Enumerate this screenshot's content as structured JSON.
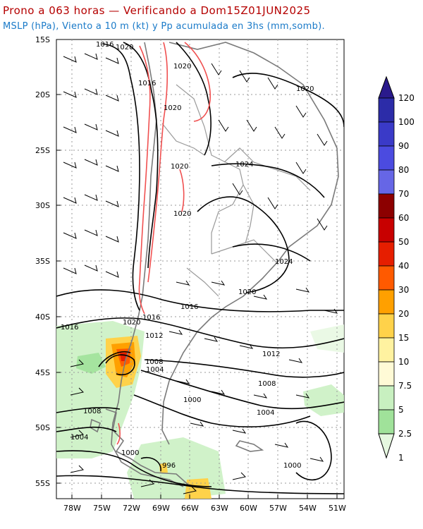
{
  "header": {
    "title": "Prono a 063 horas — Verificando a Dom15Z01JUN2025",
    "subtitle": "MSLP (hPa), Viento a 10 m (kt) y Pp acumulada en 3hs (mm,somb)."
  },
  "map": {
    "lat_labels": [
      "15S",
      "20S",
      "25S",
      "30S",
      "35S",
      "40S",
      "45S",
      "50S",
      "55S"
    ],
    "lon_labels": [
      "78W",
      "75W",
      "72W",
      "69W",
      "66W",
      "63W",
      "60W",
      "57W",
      "54W",
      "51W"
    ],
    "isobar_labels": [
      "1016",
      "1020",
      "1016",
      "1020",
      "1020",
      "1020",
      "1024",
      "1020",
      "1020",
      "1024",
      "1020",
      "1016",
      "1016",
      "1020",
      "1016",
      "1012",
      "1012",
      "1008",
      "1004",
      "1008",
      "1008",
      "1004",
      "1000",
      "1004",
      "1000",
      "1000",
      "996"
    ]
  },
  "colorbar": {
    "labels": [
      "120",
      "100",
      "90",
      "80",
      "70",
      "60",
      "50",
      "40",
      "30",
      "20",
      "15",
      "10",
      "7.5",
      "5",
      "2.5",
      "1"
    ],
    "colors": [
      "#2a1a8c",
      "#2c2ca8",
      "#3a3ac8",
      "#4b4be0",
      "#6666e6",
      "#8c0000",
      "#c80000",
      "#e61e00",
      "#ff5a00",
      "#ffa000",
      "#ffd24a",
      "#fff2a0",
      "#fffad6",
      "#c8f0c0",
      "#a0e29a",
      "#e6f8e0"
    ],
    "scale": "mm (3hs)"
  }
}
